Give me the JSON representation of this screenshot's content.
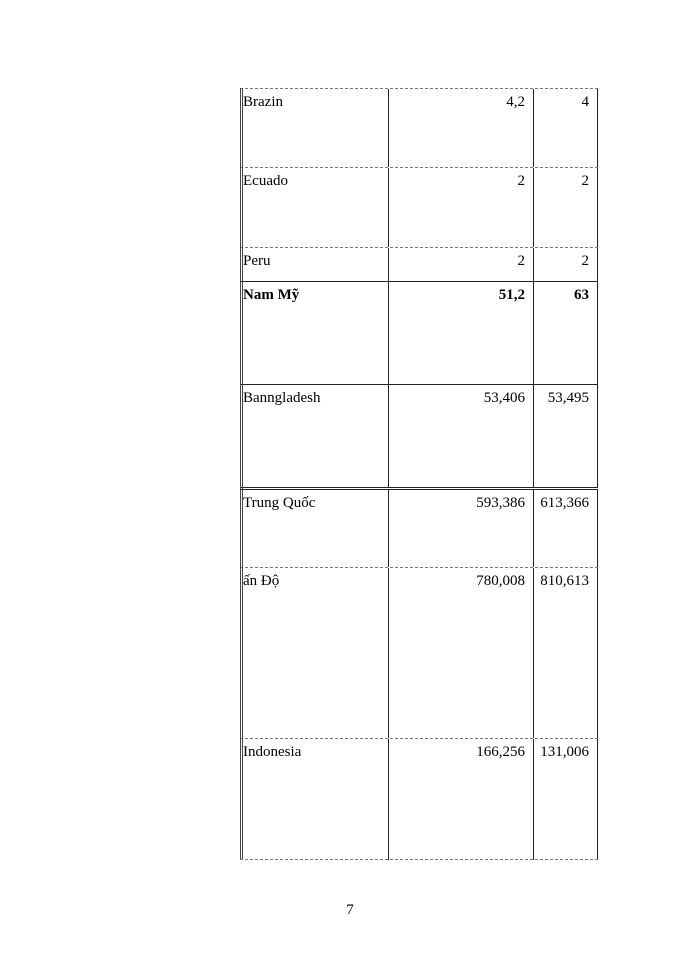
{
  "table": {
    "rows": [
      {
        "name": "Brazin",
        "v1": "4,2",
        "v2": "4",
        "bold": false
      },
      {
        "name": "Ecuado",
        "v1": "2",
        "v2": "2",
        "bold": false
      },
      {
        "name": "Peru",
        "v1": "2",
        "v2": "2",
        "bold": false
      },
      {
        "name": "Nam Mỹ",
        "v1": "51,2",
        "v2": "63",
        "bold": true
      },
      {
        "name": "Banngladesh",
        "v1": "53,406",
        "v2": "53,495",
        "bold": false
      },
      {
        "name": "Trung Quốc",
        "v1": "593,386",
        "v2": "613,366",
        "bold": false
      },
      {
        "name": "ấn Độ",
        "v1": "780,008",
        "v2": "810,613",
        "bold": false
      },
      {
        "name": "Indonesia",
        "v1": "166,256",
        "v2": "131,006",
        "bold": false
      }
    ]
  },
  "page_number": "7"
}
